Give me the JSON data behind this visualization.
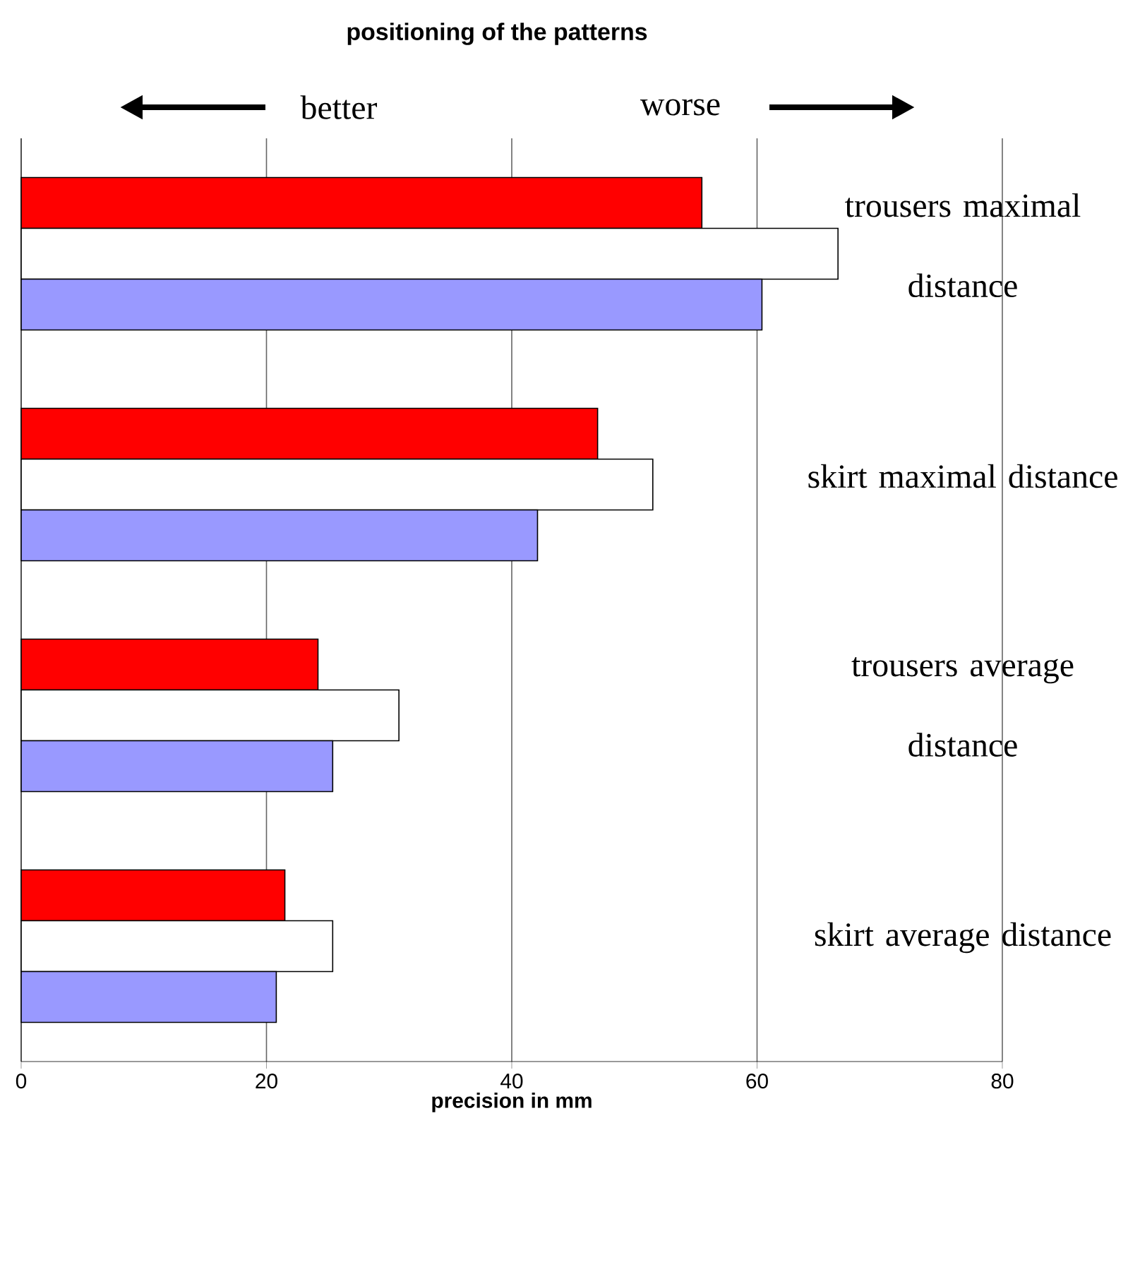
{
  "chart_data": {
    "type": "bar",
    "orientation": "horizontal",
    "title": "positioning of the patterns",
    "xlabel": "precision in mm",
    "categories": [
      "trousers maximal distance",
      "skirt maximal distance",
      "trousers average distance",
      "skirt average distance"
    ],
    "series": [
      {
        "color": "#ff0000",
        "values": [
          55.5,
          47.0,
          24.2,
          21.5
        ]
      },
      {
        "color": "#ffffff",
        "values": [
          66.6,
          51.5,
          30.8,
          25.4
        ]
      },
      {
        "color": "#9999ff",
        "values": [
          60.4,
          42.1,
          25.4,
          20.8
        ]
      }
    ],
    "xlim": [
      0,
      80
    ],
    "xticks": [
      0,
      20,
      40,
      60,
      80
    ],
    "grid": "x",
    "annotations": [
      "better",
      "worse"
    ]
  }
}
